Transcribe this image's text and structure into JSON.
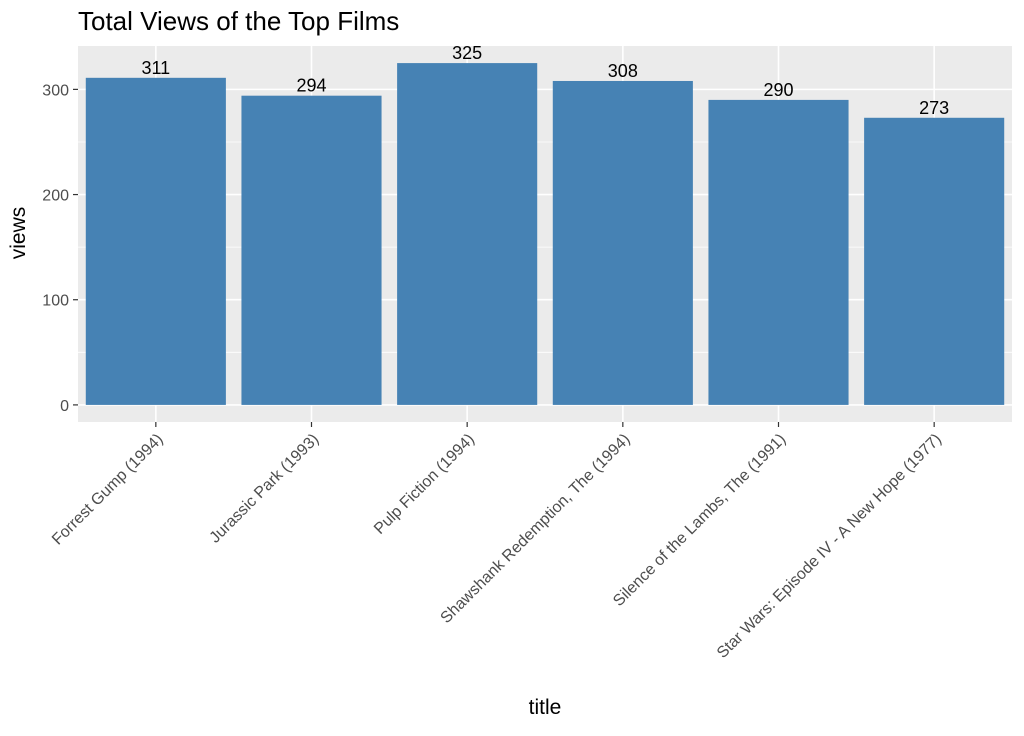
{
  "chart_data": {
    "type": "bar",
    "title": "Total Views of the Top Films",
    "xlabel": "title",
    "ylabel": "views",
    "categories": [
      "Forrest Gump (1994)",
      "Jurassic Park (1993)",
      "Pulp Fiction (1994)",
      "Shawshank Redemption, The (1994)",
      "Silence of the Lambs, The (1991)",
      "Star Wars: Episode IV - A New Hope (1977)"
    ],
    "values": [
      311,
      294,
      325,
      308,
      290,
      273
    ],
    "data_labels": [
      "311",
      "294",
      "325",
      "308",
      "290",
      "273"
    ],
    "ylim": [
      -16.25,
      341.25
    ],
    "y_ticks": [
      0,
      100,
      200,
      300
    ],
    "y_tick_labels": [
      "0",
      "100",
      "200",
      "300"
    ],
    "grid": true,
    "legend": "none",
    "colors": {
      "bar": "#4682b4",
      "panel_background": "#ebebeb",
      "grid_line": "#ffffff"
    }
  }
}
